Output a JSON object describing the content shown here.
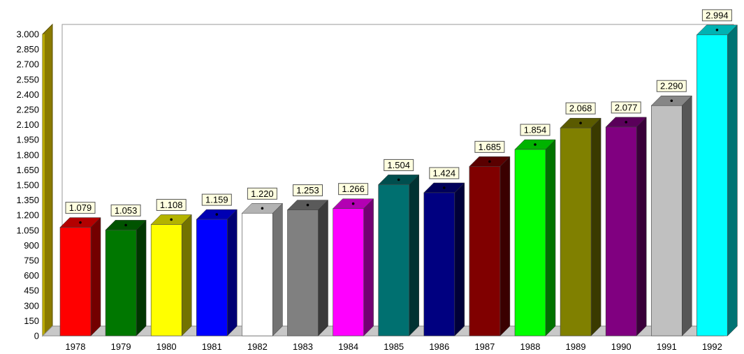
{
  "chart_data": {
    "type": "bar",
    "title": "",
    "xlabel": "",
    "ylabel": "",
    "ylim": [
      0,
      3000
    ],
    "y_ticks": [
      0,
      150,
      300,
      450,
      600,
      750,
      900,
      1050,
      1200,
      1350,
      1500,
      1650,
      1800,
      1950,
      2100,
      2250,
      2400,
      2550,
      2700,
      2850,
      3000
    ],
    "y_tick_labels": [
      "0",
      "150",
      "300",
      "450",
      "600",
      "750",
      "900",
      "1.050",
      "1.200",
      "1.350",
      "1.500",
      "1.650",
      "1.800",
      "1.950",
      "2.100",
      "2.250",
      "2.400",
      "2.550",
      "2.700",
      "2.850",
      "3.000"
    ],
    "categories": [
      "1978",
      "1979",
      "1980",
      "1981",
      "1982",
      "1983",
      "1984",
      "1985",
      "1986",
      "1987",
      "1988",
      "1989",
      "1990",
      "1991",
      "1992"
    ],
    "values": [
      1079,
      1053,
      1108,
      1159,
      1220,
      1253,
      1266,
      1504,
      1424,
      1685,
      1854,
      2068,
      2077,
      2290,
      2994
    ],
    "value_labels": [
      "1.079",
      "1.053",
      "1.108",
      "1.159",
      "1.220",
      "1.253",
      "1.266",
      "1.504",
      "1.424",
      "1.685",
      "1.854",
      "2.068",
      "2.077",
      "2.290",
      "2.994"
    ],
    "colors": [
      "#ff0000",
      "#007700",
      "#ffff00",
      "#0000ff",
      "#ffffff",
      "#808080",
      "#ff00ff",
      "#007070",
      "#000080",
      "#800000",
      "#00ff00",
      "#808000",
      "#800080",
      "#c0c0c0",
      "#00ffff"
    ],
    "grid": true,
    "legend": "none",
    "style": "3d"
  }
}
